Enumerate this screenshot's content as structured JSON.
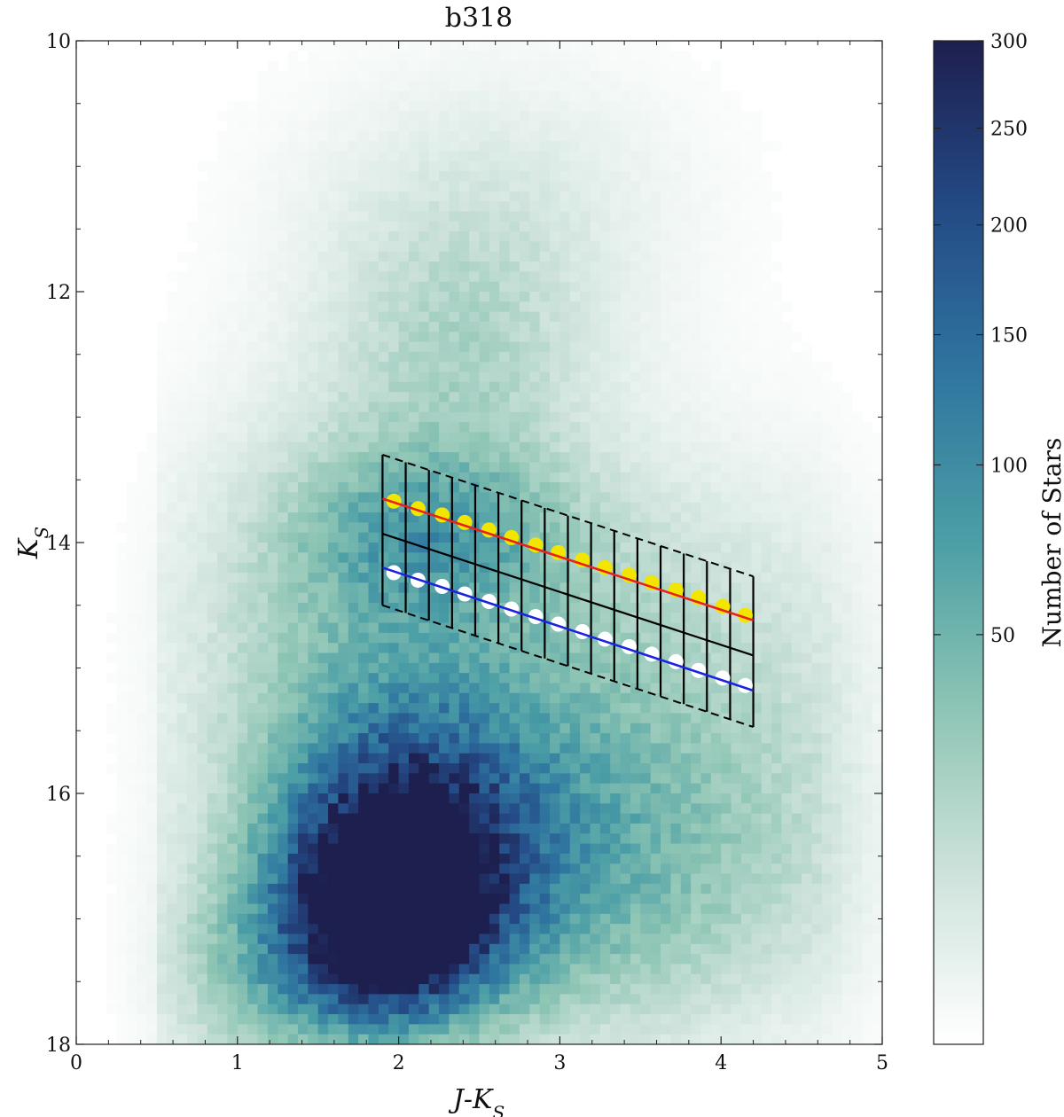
{
  "chart_data": {
    "type": "heatmap",
    "title": "b318",
    "xlabel": "J-K",
    "xlabel_sub": "S",
    "ylabel": "K",
    "ylabel_sub": "S",
    "xlim": [
      0,
      5
    ],
    "ylim": [
      18,
      10
    ],
    "y_inverted": true,
    "x_ticks": [
      0,
      1,
      2,
      3,
      4,
      5
    ],
    "y_ticks": [
      10,
      12,
      14,
      16,
      18
    ],
    "colorbar": {
      "label": "Number of Stars",
      "ticks": [
        50,
        100,
        150,
        200,
        250,
        300
      ],
      "range": [
        0,
        300
      ],
      "scale": "sqrt-like",
      "colors": [
        "#ffffff",
        "#cfe3dc",
        "#8ec5b4",
        "#4c9fa6",
        "#2f76a0",
        "#244a86",
        "#1d1f4e"
      ]
    },
    "density_components": [
      {
        "x": 1.95,
        "y": 17.0,
        "sx": 0.42,
        "sy": 0.55,
        "amp": 1.0
      },
      {
        "x": 2.05,
        "y": 16.3,
        "sx": 0.55,
        "sy": 0.75,
        "amp": 0.55
      },
      {
        "x": 2.45,
        "y": 16.7,
        "sx": 1.0,
        "sy": 0.95,
        "amp": 0.35
      },
      {
        "x": 2.2,
        "y": 13.9,
        "sx": 0.55,
        "sy": 0.45,
        "amp": 0.3
      },
      {
        "x": 1.7,
        "y": 14.6,
        "sx": 0.8,
        "sy": 1.2,
        "amp": 0.22
      },
      {
        "x": 2.4,
        "y": 12.4,
        "sx": 0.6,
        "sy": 0.8,
        "amp": 0.2
      },
      {
        "x": 3.3,
        "y": 14.8,
        "sx": 1.2,
        "sy": 1.1,
        "amp": 0.22
      },
      {
        "x": 3.8,
        "y": 16.6,
        "sx": 1.0,
        "sy": 1.0,
        "amp": 0.18
      },
      {
        "x": 2.6,
        "y": 11.2,
        "sx": 0.9,
        "sy": 0.8,
        "amp": 0.1
      },
      {
        "x": 1.2,
        "y": 17.5,
        "sx": 0.5,
        "sy": 0.6,
        "amp": 0.25
      }
    ],
    "grid_box": {
      "x_start": 1.9,
      "x_end": 4.2,
      "n_columns": 16,
      "outer_top": {
        "x": [
          1.9,
          4.2
        ],
        "y": [
          13.3,
          14.27
        ]
      },
      "outer_bottom": {
        "x": [
          1.9,
          4.2
        ],
        "y": [
          14.5,
          15.47
        ]
      },
      "center_line": {
        "x": [
          1.9,
          4.2
        ],
        "y": [
          13.93,
          14.9
        ]
      }
    },
    "series": [
      {
        "color": "#e8211a",
        "marker_color": "#f2e600",
        "fit_line": {
          "x": [
            1.9,
            4.2
          ],
          "y": [
            13.65,
            14.62
          ]
        },
        "points": {
          "x": [
            1.97,
            2.12,
            2.27,
            2.41,
            2.56,
            2.7,
            2.85,
            2.99,
            3.14,
            3.28,
            3.43,
            3.57,
            3.72,
            3.86,
            4.01,
            4.15
          ],
          "y": [
            13.67,
            13.73,
            13.78,
            13.84,
            13.9,
            13.96,
            14.02,
            14.08,
            14.14,
            14.2,
            14.26,
            14.32,
            14.38,
            14.44,
            14.51,
            14.58
          ]
        }
      },
      {
        "color": "#1a23e0",
        "marker_color": "#ffffff",
        "fit_line": {
          "x": [
            1.9,
            4.2
          ],
          "y": [
            14.2,
            15.18
          ]
        },
        "points": {
          "x": [
            1.97,
            2.12,
            2.27,
            2.41,
            2.56,
            2.7,
            2.85,
            2.99,
            3.14,
            3.28,
            3.43,
            3.57,
            3.72,
            3.86,
            4.01,
            4.15
          ],
          "y": [
            14.24,
            14.3,
            14.35,
            14.41,
            14.47,
            14.53,
            14.59,
            14.65,
            14.71,
            14.77,
            14.83,
            14.89,
            14.95,
            15.02,
            15.08,
            15.14
          ]
        }
      }
    ]
  }
}
